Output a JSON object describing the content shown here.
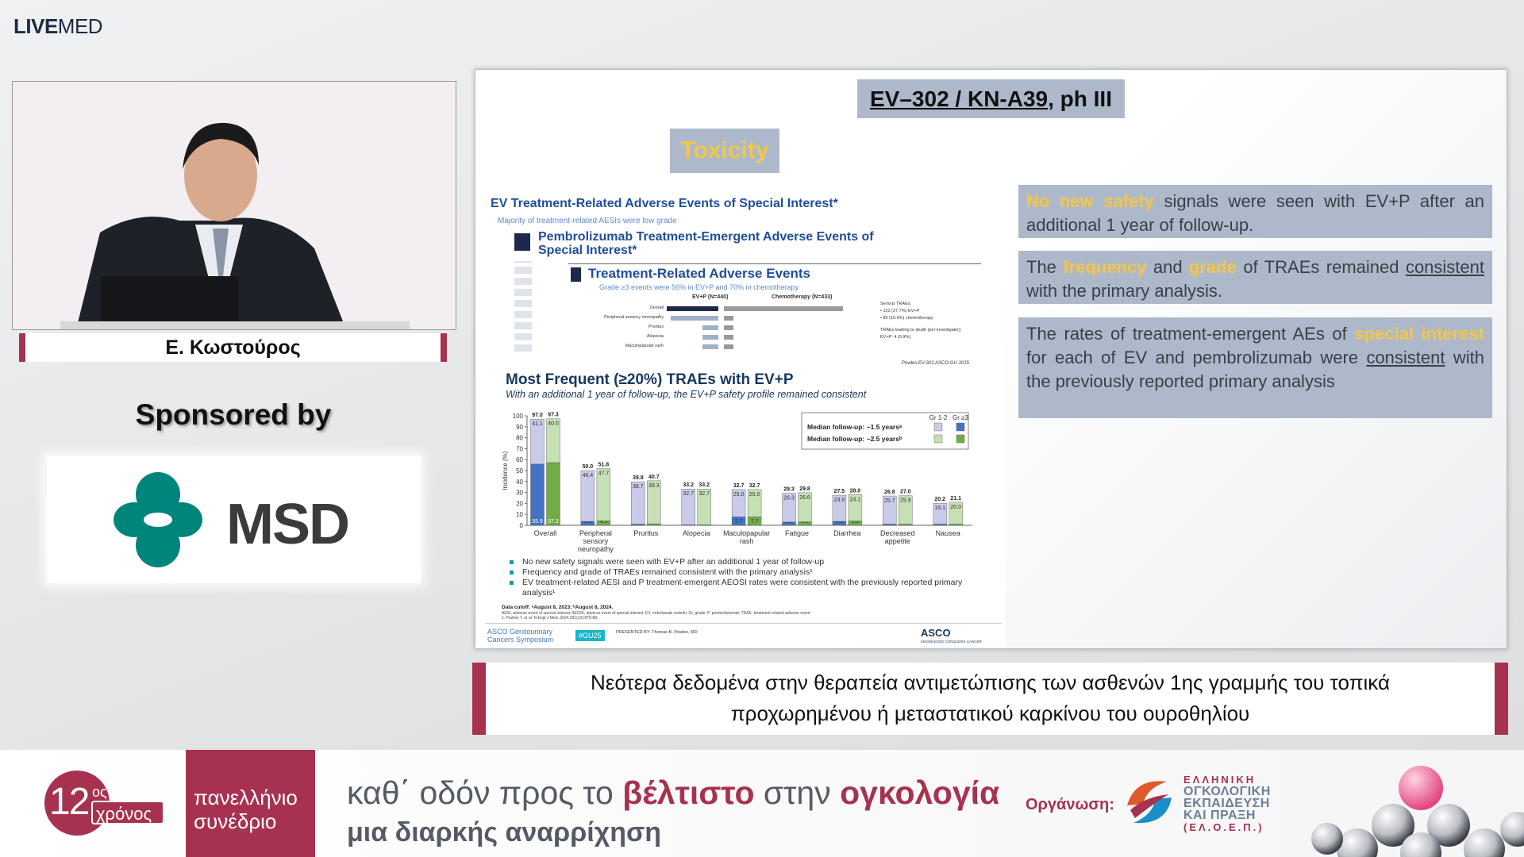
{
  "header": {
    "logo_bold": "LIVE",
    "logo_regular": "MED"
  },
  "speaker": {
    "name": "Ε. Κωστούρος"
  },
  "sponsor": {
    "label": "Sponsored by",
    "logo": "MSD"
  },
  "slide": {
    "title": [
      {
        "t": "EV–302 / KN-A39",
        "s": "u"
      },
      {
        "t": ", ph III"
      }
    ],
    "section": "Toxicity",
    "cards": [
      {
        "title": "EV Treatment-Related Adverse Events of Special Interest*",
        "subtitle": "Majority of treatment-related AESIs were low grade"
      },
      {
        "title": "Pembrolizumab Treatment-Emergent Adverse Events of Special Interest*"
      },
      {
        "title": "Treatment-Related Adverse Events",
        "subtitle": "Grade ≥3 events were 56% in EV+P and 70% in chemotherapy",
        "columns": [
          "EV+P (N=440)",
          "Chemotherapy (N=433)"
        ],
        "rows": [
          "Overall",
          "Peripheral sensory neuropathy",
          "Pruritus",
          "Alopecia",
          "Maculopapular rash"
        ],
        "notes": [
          "Serious TRAEs:",
          "• 122 (27.7%) EV+P",
          "• 85 (19.6%) chemotherapy",
          "TRAEs leading to death (per investigator):",
          "EV+P: 4 (0.9%)"
        ],
        "source": "Powles EV-302 ASCO-GU 2025"
      }
    ],
    "bullets": [
      "No new safety signals were seen with EV+P after an additional 1 year of follow-up",
      "Frequency and grade of TRAEs remained consistent with the primary analysis¹",
      "EV treatment-related AESI and P treatment-emergent AEOSI rates were consistent with the previously reported primary analysis¹"
    ],
    "footnotes": [
      "Data cutoff: ᵃAugust 8, 2023; ᵇAugust 8, 2024.",
      "AESI, adverse event of special interest; AEOSI, adverse event of special interest; EV, enfortumab vedotin; Gr, grade; P, pembrolizumab; TRAE, treatment-related adverse event",
      "1. Powles T, et al. N Engl J Med. 2024;391(10):875-88."
    ],
    "footer": {
      "society": "ASCO Genitourinary Cancers Symposium",
      "hashtag": "#GU25",
      "presenter": "PRESENTED BY: Thomas B. Powles, MD",
      "asco": "ASCO",
      "asco_tag": "KNOWLEDGE CONQUERS CANCER"
    },
    "points": [
      [
        {
          "t": "No new safety",
          "s": "hl"
        },
        {
          "t": " signals were seen with EV+P after an additional 1 year of follow-up."
        }
      ],
      [
        {
          "t": "The "
        },
        {
          "t": "frequency",
          "s": "hl"
        },
        {
          "t": " and "
        },
        {
          "t": "grade",
          "s": "hl"
        },
        {
          "t": " of TRAEs remained "
        },
        {
          "t": "consistent",
          "s": "u"
        },
        {
          "t": " with the primary analysis."
        }
      ],
      [
        {
          "t": "The rates of treatment-emergent AEs of "
        },
        {
          "t": "special interest",
          "s": "hl"
        },
        {
          "t": " for each of EV and pembrolizumab were "
        },
        {
          "t": "consistent",
          "s": "u"
        },
        {
          "t": " with the previously reported primary analysis"
        }
      ]
    ]
  },
  "chart_data": {
    "type": "bar",
    "title": "Most Frequent (≥20%) TRAEs with EV+P",
    "subtitle": "With an additional 1 year of follow-up, the EV+P safety profile remained consistent",
    "y_label": "Incidence (%)",
    "categories": [
      "Overall",
      "Peripheral sensory neuropathy",
      "Pruritus",
      "Alopecia",
      "Maculopapular rash",
      "Fatigue",
      "Diarrhea",
      "Decreased appetite",
      "Nausea"
    ],
    "ylim": [
      0,
      100
    ],
    "yticks": [
      0,
      10,
      20,
      30,
      40,
      50,
      60,
      70,
      80,
      90,
      100
    ],
    "legend_columns": [
      "Gr 1-2",
      "Gr ≥3"
    ],
    "series": [
      {
        "name": "Median follow-up: ~1.5 yearsᵃ",
        "colors": [
          "#c9cbe8",
          "#4472c4"
        ],
        "segments": [
          {
            "values": [
              41.1,
              46.4,
              38.7,
              32.7,
              25.0,
              26.3,
              23.9,
              25.7,
              19.1
            ],
            "value_labels": [
              "41.1",
              "46.4",
              "38.7",
              "32.7",
              "25.0",
              "26.3",
              "23.9",
              "25.7",
              "19.1"
            ]
          },
          {
            "values": [
              55.9,
              3.6,
              1.1,
              0.5,
              7.7,
              3.0,
              3.6,
              1.1,
              1.1
            ],
            "value_labels": [
              "55.9",
              "3.6",
              "1.1",
              "0.5",
              "7.7",
              "3.0",
              "3.6",
              "1.1",
              "1.1"
            ]
          }
        ],
        "total_labels": [
          "97.0",
          "50.0",
          "39.8",
          "33.2",
          "32.7",
          "29.3",
          "27.5",
          "26.8",
          "20.2"
        ]
      },
      {
        "name": "Median follow-up: ~2.5 yearsᵇ",
        "colors": [
          "#c5e0b4",
          "#70ad47"
        ],
        "segments": [
          {
            "values": [
              40.0,
              47.7,
              39.3,
              32.7,
              25.0,
              26.6,
              24.1,
              25.9,
              20.0
            ],
            "value_labels": [
              "40.0",
              "47.7",
              "39.3",
              "32.7",
              "25.0",
              "26.6",
              "24.1",
              "25.9",
              "20.0"
            ]
          },
          {
            "values": [
              57.3,
              4.1,
              1.4,
              0.5,
              7.7,
              3.2,
              3.9,
              1.1,
              1.1
            ],
            "value_labels": [
              "57.3",
              "4.1",
              "1.4",
              "0.5",
              "7.7",
              "3.2",
              "3.9",
              "1.1",
              "1.1"
            ]
          }
        ],
        "total_labels": [
          "97.3",
          "51.8",
          "40.7",
          "33.2",
          "32.7",
          "29.8",
          "28.0",
          "27.0",
          "21.1"
        ]
      }
    ]
  },
  "caption": {
    "lines": [
      "Νεότερα δεδομένα στην θεραπεία αντιμετώπισης των ασθενών 1ης γραμμής του τοπικά",
      "προχωρημένου ή μεταστατικού καρκίνου του ουροθηλίου"
    ]
  },
  "banner": {
    "anniversary": "12",
    "anniversary_suffix": "ος",
    "anniversary_word": "χρόνος",
    "event": [
      "πανελλήνιο",
      "συνέδριο"
    ],
    "tagline": [
      {
        "t": "καθ΄ οδόν προς το "
      },
      {
        "t": "βέλτιστο",
        "s": "hl"
      },
      {
        "t": " στην "
      },
      {
        "t": "ογκολογία",
        "s": "hl"
      }
    ],
    "subtitle": "μια διαρκής αναρρίχηση",
    "organizer_label": "Οργάνωση:",
    "organizer": [
      "ΕΛΛΗΝΙΚΗ",
      "ΟΓΚΟΛΟΓΙΚΗ",
      "ΕΚΠΑΙΔΕΥΣΗ",
      "ΚΑΙ ΠΡΑΞΗ",
      "(ΕΛ.Ο.Ε.Π.)"
    ]
  }
}
